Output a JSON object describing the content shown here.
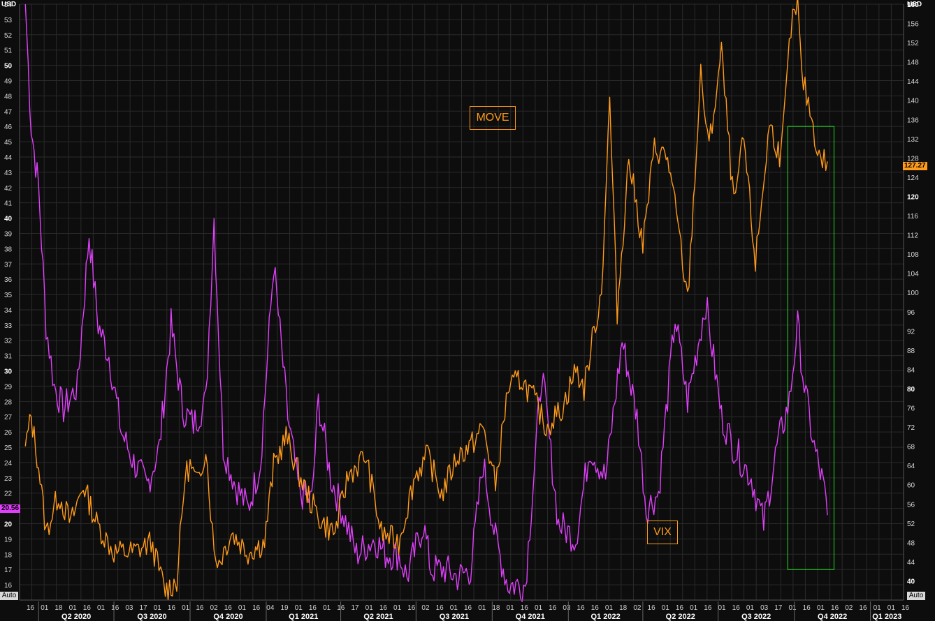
{
  "left_axis": {
    "unit": "USD"
  },
  "right_axis": {
    "unit": "USD"
  },
  "auto_buttons": [
    "Auto",
    "Auto"
  ],
  "annotations": {
    "move": "MOVE",
    "vix": "VIX"
  },
  "last_values": {
    "vix": "20.56",
    "move": "127.27"
  },
  "colors": {
    "vix": "#e040fb",
    "move": "#ff9a1a",
    "box": "#22dd22",
    "grid": "#2a2a2a",
    "background": "#0d0d0d"
  },
  "x_date_labels": [
    "16",
    "01",
    "18",
    "01",
    "16",
    "01",
    "16",
    "03",
    "17",
    "01",
    "16",
    "01",
    "16",
    "02",
    "16",
    "01",
    "16",
    "04",
    "19",
    "01",
    "16",
    "01",
    "16",
    "17",
    "01",
    "16",
    "01",
    "16",
    "02",
    "16",
    "01",
    "16",
    "01",
    "18",
    "01",
    "16",
    "01",
    "16",
    "03",
    "16",
    "16",
    "01",
    "18",
    "02",
    "16",
    "01",
    "16",
    "01",
    "16",
    "01",
    "16",
    "01",
    "03",
    "17",
    "01",
    "16",
    "01",
    "16",
    "02",
    "16",
    "01",
    "01",
    "16"
  ],
  "x_quarter_labels": [
    "Q2 2020",
    "Q3 2020",
    "Q4 2020",
    "Q1 2021",
    "Q2 2021",
    "Q3 2021",
    "Q4 2021",
    "Q1 2022",
    "Q2 2022",
    "Q3 2022",
    "Q4 2022",
    "Q1 2023"
  ],
  "chart_data": {
    "type": "line",
    "x_range": [
      "2020-03",
      "2023-02"
    ],
    "left_ylim": [
      15,
      54
    ],
    "right_ylim": [
      36,
      160
    ],
    "left_ticks": [
      16,
      17,
      18,
      19,
      20,
      21,
      22,
      23,
      24,
      25,
      26,
      27,
      28,
      29,
      30,
      31,
      32,
      33,
      34,
      35,
      36,
      37,
      38,
      39,
      40,
      41,
      42,
      43,
      44,
      45,
      46,
      47,
      48,
      49,
      50,
      51,
      52,
      53,
      54
    ],
    "right_ticks": [
      40,
      44,
      48,
      52,
      56,
      60,
      64,
      68,
      72,
      76,
      80,
      84,
      88,
      92,
      96,
      100,
      104,
      108,
      112,
      116,
      120,
      124,
      128,
      132,
      136,
      140,
      144,
      148,
      152,
      156,
      160
    ],
    "highlight_box": {
      "x_start": "2022-09-23",
      "x_end": "2022-11-18",
      "y_bottom_left_axis": 17,
      "y_top_left_axis": 46
    },
    "series": [
      {
        "name": "VIX",
        "axis": "left",
        "x": [
          "2020-03-16",
          "2020-03-23",
          "2020-04-01",
          "2020-04-10",
          "2020-04-20",
          "2020-05-01",
          "2020-05-18",
          "2020-06-01",
          "2020-06-12",
          "2020-06-25",
          "2020-07-10",
          "2020-07-25",
          "2020-08-10",
          "2020-08-25",
          "2020-09-08",
          "2020-09-22",
          "2020-10-05",
          "2020-10-20",
          "2020-10-30",
          "2020-11-10",
          "2020-11-25",
          "2020-12-10",
          "2020-12-25",
          "2021-01-10",
          "2021-01-27",
          "2021-02-10",
          "2021-02-25",
          "2021-03-05",
          "2021-03-20",
          "2021-04-05",
          "2021-04-20",
          "2021-05-12",
          "2021-05-25",
          "2021-06-10",
          "2021-06-20",
          "2021-07-10",
          "2021-07-19",
          "2021-08-05",
          "2021-08-20",
          "2021-09-05",
          "2021-09-20",
          "2021-10-05",
          "2021-10-20",
          "2021-11-10",
          "2021-11-30",
          "2021-12-20",
          "2022-01-10",
          "2022-01-27",
          "2022-02-15",
          "2022-03-07",
          "2022-03-25",
          "2022-04-05",
          "2022-04-20",
          "2022-05-10",
          "2022-05-25",
          "2022-06-16",
          "2022-07-05",
          "2022-07-20",
          "2022-08-10",
          "2022-08-25",
          "2022-09-10",
          "2022-09-25",
          "2022-10-05",
          "2022-10-13",
          "2022-10-25",
          "2022-11-05",
          "2022-11-10"
        ],
        "y": [
          54,
          46,
          42,
          33,
          29,
          27.5,
          29,
          39,
          33,
          31,
          26,
          24,
          22.5,
          25,
          33,
          27.5,
          26.5,
          28,
          40,
          25,
          22.5,
          21,
          24,
          37,
          27,
          22,
          21.5,
          28,
          23,
          20.5,
          18,
          19,
          18,
          18,
          16.5,
          20,
          17,
          17,
          16.5,
          17,
          24,
          19,
          16,
          16,
          30,
          20,
          19,
          25,
          23,
          32,
          27,
          21,
          22,
          33.5,
          28,
          34.5,
          27,
          25,
          23,
          20,
          25,
          28,
          33,
          29,
          25,
          22.5,
          20.56
        ]
      },
      {
        "name": "MOVE",
        "axis": "right",
        "x": [
          "2020-03-16",
          "2020-03-23",
          "2020-04-01",
          "2020-04-10",
          "2020-04-25",
          "2020-05-10",
          "2020-05-25",
          "2020-06-10",
          "2020-07-01",
          "2020-07-25",
          "2020-08-15",
          "2020-09-01",
          "2020-09-15",
          "2020-09-25",
          "2020-10-01",
          "2020-10-10",
          "2020-10-20",
          "2020-10-30",
          "2020-11-05",
          "2020-11-20",
          "2020-12-10",
          "2020-12-30",
          "2021-01-10",
          "2021-01-25",
          "2021-02-10",
          "2021-02-25",
          "2021-03-10",
          "2021-03-25",
          "2021-04-10",
          "2021-05-01",
          "2021-05-20",
          "2021-06-10",
          "2021-06-30",
          "2021-07-15",
          "2021-08-01",
          "2021-08-20",
          "2021-09-05",
          "2021-09-20",
          "2021-10-05",
          "2021-10-20",
          "2021-11-05",
          "2021-11-20",
          "2021-12-05",
          "2021-12-25",
          "2022-01-10",
          "2022-01-20",
          "2022-02-01",
          "2022-02-10",
          "2022-02-20",
          "2022-03-01",
          "2022-03-15",
          "2022-04-01",
          "2022-04-15",
          "2022-05-01",
          "2022-05-15",
          "2022-05-25",
          "2022-06-10",
          "2022-06-20",
          "2022-07-05",
          "2022-07-20",
          "2022-08-01",
          "2022-08-15",
          "2022-09-01",
          "2022-09-15",
          "2022-09-27",
          "2022-10-05",
          "2022-10-10",
          "2022-10-20",
          "2022-10-31",
          "2022-11-10"
        ],
        "y": [
          68,
          74,
          64,
          50,
          58,
          52,
          60,
          52,
          46,
          46,
          48,
          38,
          40,
          62,
          64,
          60,
          68,
          46,
          44,
          50,
          46,
          48,
          64,
          70,
          62,
          56,
          52,
          50,
          62,
          66,
          50,
          48,
          62,
          66,
          58,
          66,
          68,
          72,
          60,
          80,
          82,
          78,
          72,
          76,
          84,
          80,
          92,
          100,
          140,
          96,
          128,
          110,
          130,
          128,
          112,
          98,
          145,
          130,
          150,
          118,
          132,
          106,
          135,
          128,
          155,
          160,
          145,
          138,
          128,
          127.27
        ]
      }
    ]
  }
}
